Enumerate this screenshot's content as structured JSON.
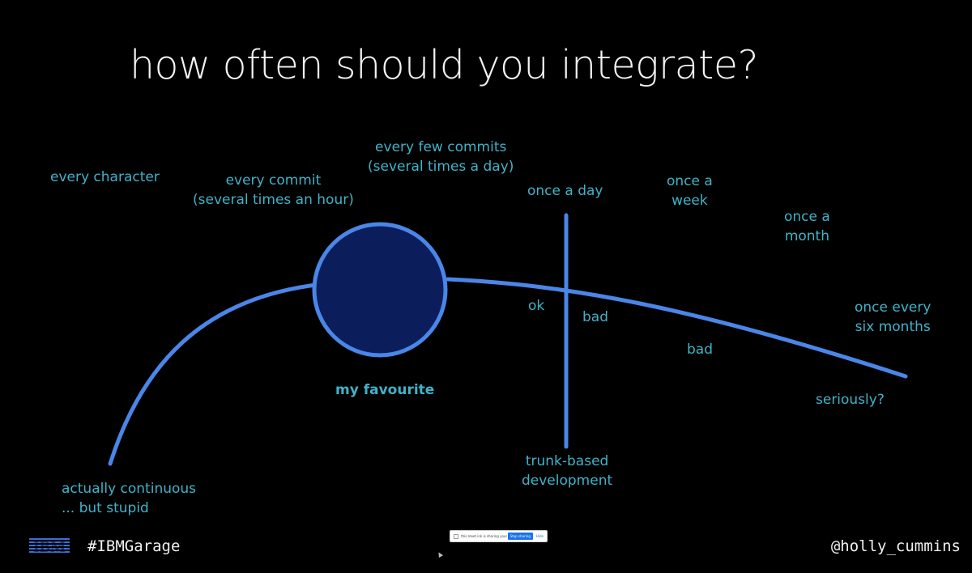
{
  "title": "how often should you integrate?",
  "labels": {
    "every_character": "every character",
    "every_commit": [
      "every commit",
      "(several times an hour)"
    ],
    "every_few_commits": [
      "every few commits",
      "(several times a day)"
    ],
    "once_a_day": "once a day",
    "once_a_week": [
      "once a",
      "week"
    ],
    "once_a_month": [
      "once a",
      "month"
    ],
    "once_every_six_months": [
      "once every",
      "six months"
    ],
    "ok": "ok",
    "bad_1": "bad",
    "bad_2": "bad",
    "seriously": "seriously?",
    "my_favourite": "my favourite",
    "trunk_based": [
      "trunk-based",
      "development"
    ],
    "actually_continuous": [
      "actually continuous",
      "... but stupid"
    ]
  },
  "footer": {
    "logo_text": "IBM",
    "hashtag": "#IBMGarage",
    "handle": "@holly_cummins"
  },
  "share_bar": {
    "message": "this.meet.ink is sharing your screen.",
    "stop_label": "Stop sharing",
    "hide_label": "Hide"
  },
  "colors": {
    "background": "#000000",
    "label": "#3fb3c9",
    "curve": "#4a86e8",
    "circle_fill": "#0c1d5c",
    "title": "#f2f2f2"
  }
}
